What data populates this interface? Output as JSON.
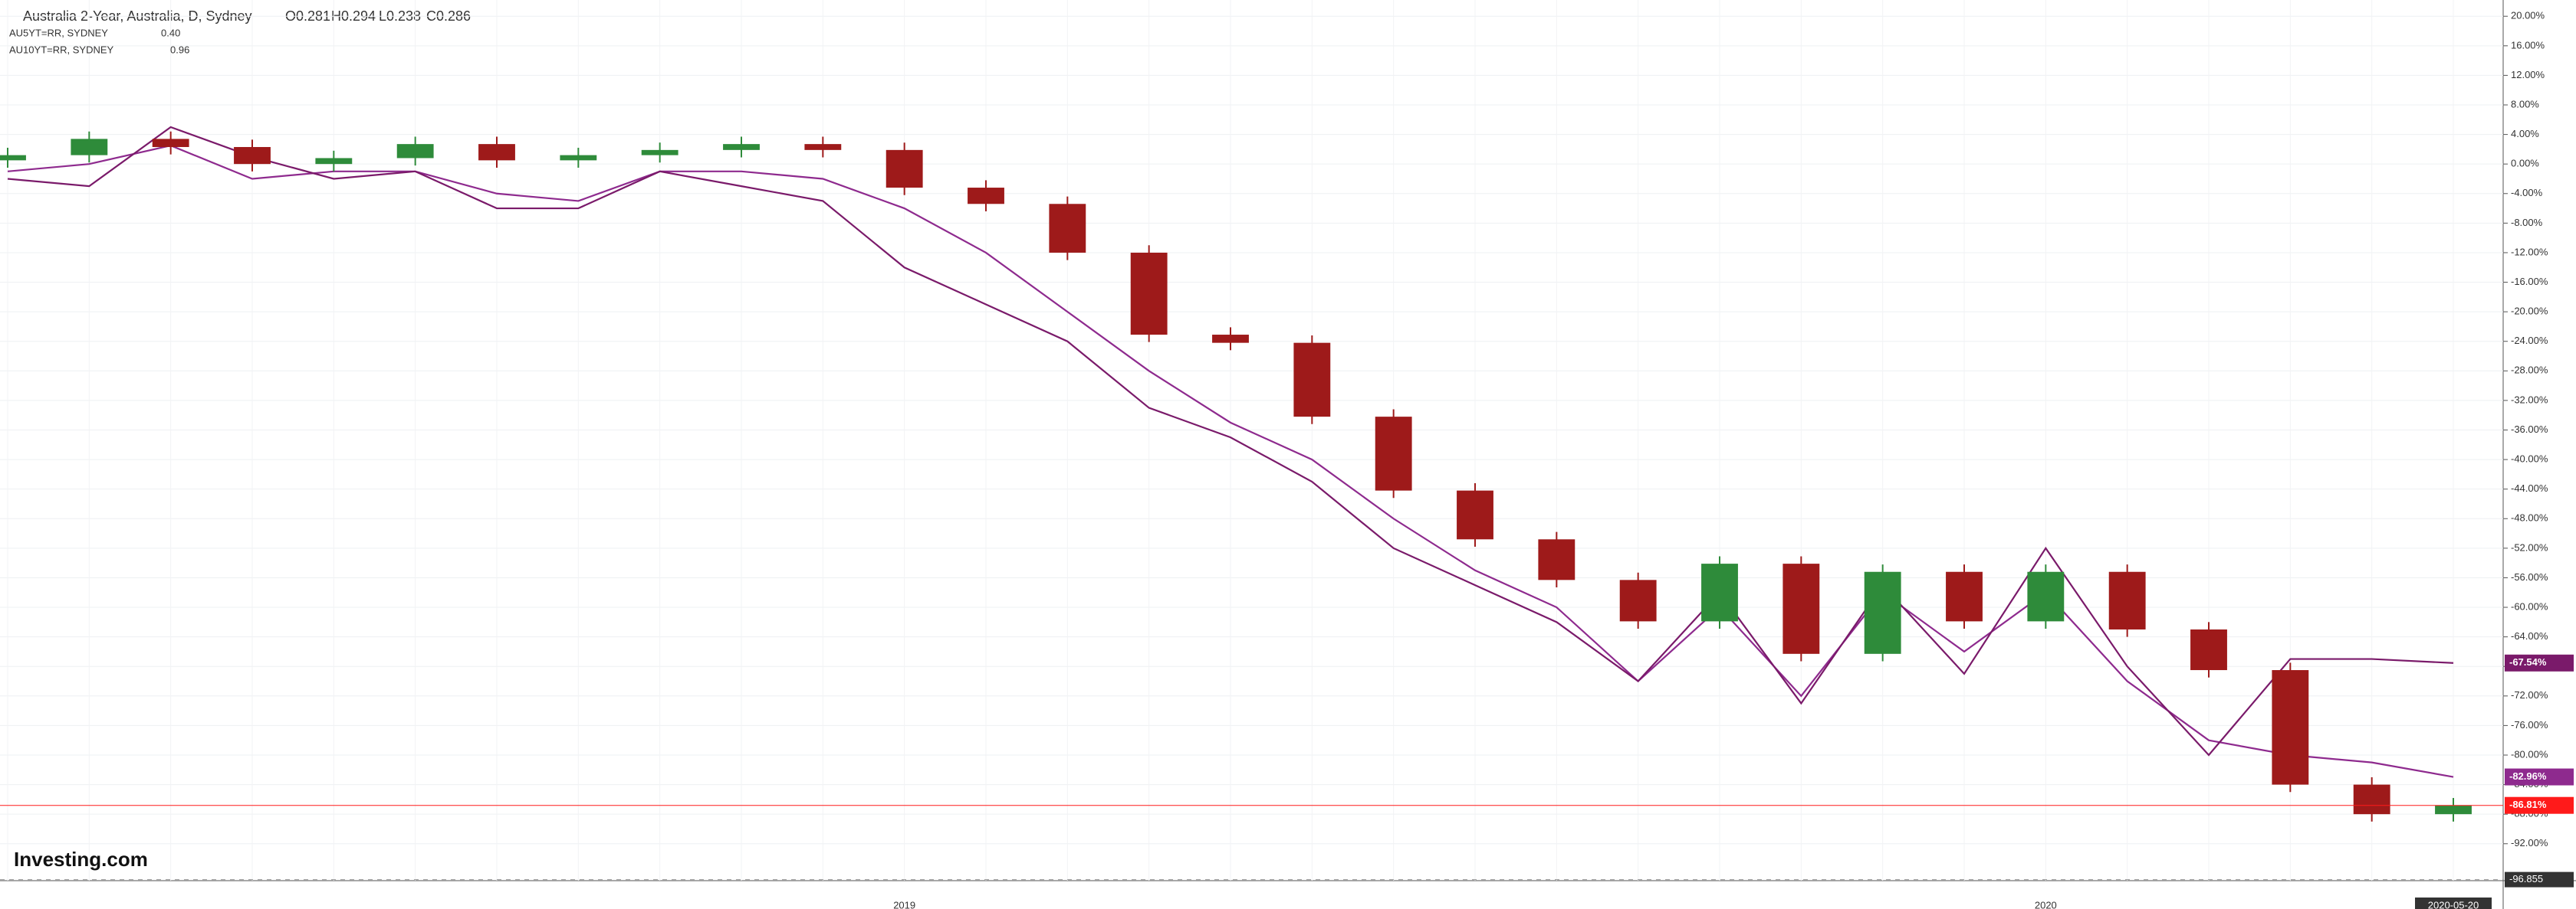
{
  "chart_data": {
    "type": "candlestick",
    "title": "Australia 2-Year, Australia, D, Sydney",
    "ohlc_text": [
      "O0.281",
      "H0.294",
      "L0.238",
      "C0.286"
    ],
    "logo": "Investing.com",
    "categories": [
      null,
      null,
      null,
      null,
      null,
      null,
      null,
      null,
      null,
      null,
      null,
      "2019",
      null,
      null,
      null,
      null,
      null,
      null,
      null,
      null,
      null,
      null,
      null,
      null,
      null,
      "2020",
      null,
      null,
      null,
      null,
      "2020-05-20"
    ],
    "candles": {
      "up_color": "#2e8b3a",
      "down_color": "#9e1a1a",
      "open": [
        0.5,
        1.2,
        3.4,
        2.3,
        0,
        0.8,
        2.7,
        0.5,
        1.2,
        1.9,
        2.7,
        1.9,
        -3.2,
        -5.4,
        -12,
        -23.1,
        -24.2,
        -34.2,
        -44.2,
        -50.8,
        -56.3,
        -61.9,
        -54.1,
        -66.3,
        -55.2,
        -61.9,
        -55.2,
        -63,
        -68.5,
        -84,
        -88
      ],
      "high": [
        2.2,
        4.4,
        4.4,
        3.3,
        1.8,
        3.7,
        3.7,
        2.2,
        2.9,
        3.7,
        3.7,
        2.9,
        -2.2,
        -4.4,
        -11,
        -22.1,
        -23.2,
        -33.2,
        -43.2,
        -49.8,
        -55.3,
        -53.1,
        -53.1,
        -54.2,
        -54.2,
        -54.2,
        -54.2,
        -62,
        -67.5,
        -83,
        -85.81
      ],
      "low": [
        -0.5,
        0.2,
        1.3,
        -1,
        -1,
        -0.2,
        -0.5,
        -0.5,
        0.2,
        0.9,
        0.9,
        -4.2,
        -6.4,
        -13,
        -24.1,
        -25.2,
        -35.2,
        -45.2,
        -51.8,
        -57.3,
        -62.9,
        -62.9,
        -67.3,
        -67.3,
        -62.9,
        -62.9,
        -64,
        -69.5,
        -85,
        -89,
        -89
      ],
      "close": [
        1.2,
        3.4,
        2.3,
        0,
        0.8,
        2.7,
        0.5,
        1.2,
        1.9,
        2.7,
        1.9,
        -3.2,
        -5.4,
        -12,
        -23.1,
        -24.2,
        -34.2,
        -44.2,
        -50.8,
        -56.3,
        -61.9,
        -54.1,
        -66.3,
        -55.2,
        -61.9,
        -55.2,
        -63,
        -68.5,
        -84,
        -88,
        -86.81
      ],
      "value_labels": [
        null,
        null,
        null,
        null,
        null,
        null,
        null,
        null,
        null,
        null,
        null,
        null,
        null,
        null,
        null,
        null,
        null,
        null,
        null,
        null,
        null,
        null,
        null,
        null,
        null,
        null,
        null,
        null,
        null,
        null,
        "-86.81%"
      ],
      "label_color": "#ff1a1a"
    },
    "series": [
      {
        "name": "AU5YT=RR, SYDNEY",
        "legend_value": "0.40",
        "color": "#8e2a8e",
        "values": [
          -1,
          0,
          2.5,
          -2,
          -1,
          -1,
          -4,
          -5,
          -1,
          -1,
          -2,
          -6,
          -12,
          -20,
          -28,
          -35,
          -40,
          -48,
          -55,
          -60,
          -70,
          -60,
          -72,
          -58,
          -66,
          -58,
          -70,
          -78,
          -80,
          -81,
          -82.96
        ],
        "value_labels": [
          null,
          null,
          null,
          null,
          null,
          null,
          null,
          null,
          null,
          null,
          null,
          null,
          null,
          null,
          null,
          null,
          null,
          null,
          null,
          null,
          null,
          null,
          null,
          null,
          null,
          null,
          null,
          null,
          null,
          null,
          "-82.96%"
        ]
      },
      {
        "name": "AU10YT=RR, SYDNEY",
        "legend_value": "0.96",
        "color": "#7a1a6a",
        "values": [
          -2,
          -3,
          5,
          1,
          -2,
          -1,
          -6,
          -6,
          -1,
          -3,
          -5,
          -14,
          -19,
          -24,
          -33,
          -37,
          -43,
          -52,
          -57,
          -62,
          -70,
          -58,
          -73,
          -57,
          -69,
          -52,
          -68,
          -80,
          -67,
          -67,
          -67.54
        ],
        "value_labels": [
          null,
          null,
          null,
          null,
          null,
          null,
          null,
          null,
          null,
          null,
          null,
          null,
          null,
          null,
          null,
          null,
          null,
          null,
          null,
          null,
          null,
          null,
          null,
          null,
          null,
          null,
          null,
          null,
          null,
          null,
          "-67.54%"
        ]
      }
    ],
    "ylim": [
      -97,
      22.2
    ],
    "yticks": [
      {
        "value": -92,
        "label": "-92.00%"
      },
      {
        "value": -88,
        "label": "-88.00%"
      },
      {
        "value": -84,
        "label": "-84.00%"
      },
      {
        "value": -80,
        "label": "-80.00%"
      },
      {
        "value": -76,
        "label": "-76.00%"
      },
      {
        "value": -72,
        "label": "-72.00%"
      },
      {
        "value": -68,
        "label": "-68.00%"
      },
      {
        "value": -64,
        "label": "-64.00%"
      },
      {
        "value": -60,
        "label": "-60.00%"
      },
      {
        "value": -56,
        "label": "-56.00%"
      },
      {
        "value": -52,
        "label": "-52.00%"
      },
      {
        "value": -48,
        "label": "-48.00%"
      },
      {
        "value": -44,
        "label": "-44.00%"
      },
      {
        "value": -40,
        "label": "-40.00%"
      },
      {
        "value": -36,
        "label": "-36.00%"
      },
      {
        "value": -32,
        "label": "-32.00%"
      },
      {
        "value": -28,
        "label": "-28.00%"
      },
      {
        "value": -24,
        "label": "-24.00%"
      },
      {
        "value": -20,
        "label": "-20.00%"
      },
      {
        "value": -16,
        "label": "-16.00%"
      },
      {
        "value": -12,
        "label": "-12.00%"
      },
      {
        "value": -8,
        "label": "-8.00%"
      },
      {
        "value": -4,
        "label": "-4.00%"
      },
      {
        "value": 0,
        "label": "0.00%"
      },
      {
        "value": 4,
        "label": "4.00%"
      },
      {
        "value": 8,
        "label": "8.00%"
      },
      {
        "value": 12,
        "label": "12.00%"
      },
      {
        "value": 16,
        "label": "16.00%"
      },
      {
        "value": 20,
        "label": "20.00%"
      }
    ],
    "crosshair": -96.855,
    "grid": true
  }
}
